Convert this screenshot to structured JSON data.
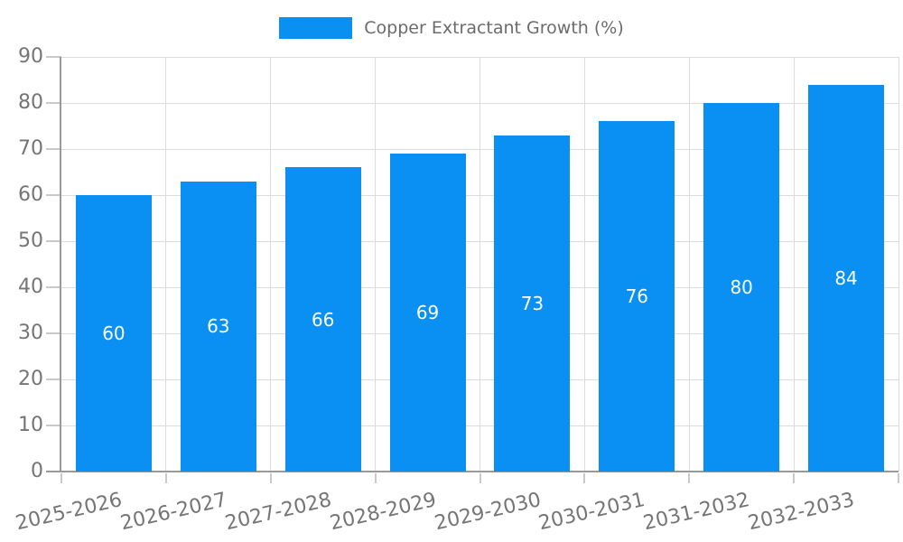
{
  "chart_data": {
    "type": "bar",
    "title": "Copper Extractant Growth (%)",
    "categories": [
      "2025-2026",
      "2026-2027",
      "2027-2028",
      "2028-2029",
      "2029-2030",
      "2030-2031",
      "2031-2032",
      "2032-2033"
    ],
    "series": [
      {
        "name": "Copper Extractant Growth (%)",
        "values": [
          60,
          63,
          66,
          69,
          73,
          76,
          80,
          84
        ]
      }
    ],
    "values": [
      60,
      63,
      66,
      69,
      73,
      76,
      80,
      84
    ],
    "value_labels": [
      "60",
      "63",
      "66",
      "69",
      "73",
      "76",
      "80",
      "84"
    ],
    "value_label_position": "inside-center",
    "xlabel": "",
    "ylabel": "",
    "ylim": [
      0,
      90
    ],
    "ytick_step": 10,
    "y_ticks": [
      "0",
      "10",
      "20",
      "30",
      "40",
      "50",
      "60",
      "70",
      "80",
      "90"
    ],
    "grid": true,
    "legend_position": "top-center"
  },
  "legend": {
    "label": "Copper Extractant Growth (%)"
  },
  "colors": {
    "bar": "#0a90f2",
    "grid": "#dcdcdc",
    "tick": "#c9c9c9",
    "axis": "#999999",
    "tick_label": "#757575",
    "legend_text": "#6b6b6b",
    "value_label": "#ffffff",
    "background": "#ffffff"
  }
}
